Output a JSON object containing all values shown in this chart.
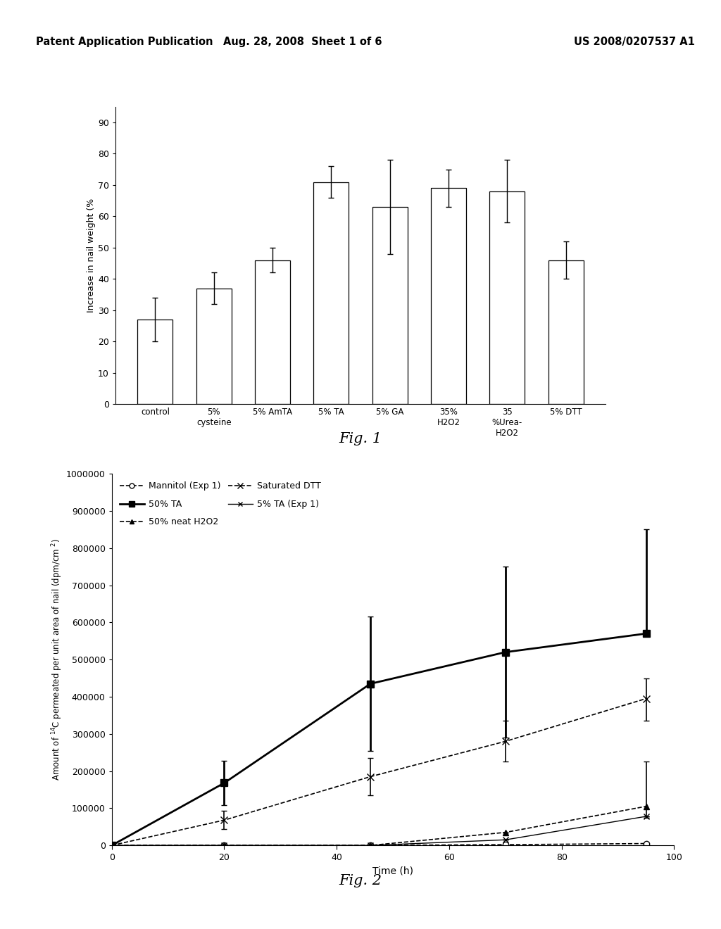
{
  "header_left": "Patent Application Publication",
  "header_mid": "Aug. 28, 2008  Sheet 1 of 6",
  "header_right": "US 2008/0207537 A1",
  "fig1": {
    "categories": [
      "control",
      "5%\ncysteine",
      "5% AmTA",
      "5% TA",
      "5% GA",
      "35%\nH2O2",
      "35\n%Urea-\nH2O2",
      "5% DTT"
    ],
    "values": [
      27,
      37,
      46,
      71,
      63,
      69,
      68,
      46
    ],
    "errors": [
      7,
      5,
      4,
      5,
      15,
      6,
      10,
      6
    ],
    "ylabel": "Increase in nail weight (%",
    "yticks": [
      0,
      10,
      20,
      30,
      40,
      50,
      60,
      70,
      80,
      90
    ],
    "ylim": [
      0,
      95
    ],
    "bar_color": "white",
    "bar_edgecolor": "black",
    "fig_label": "Fig. 1"
  },
  "fig2": {
    "xlabel": "Time (h)",
    "ylabel": "Amount of $^{14}$C permeated per unit area of nail (dpm/cm $^{2}$)",
    "ylim": [
      0,
      1000000
    ],
    "xlim": [
      0,
      100
    ],
    "yticks": [
      0,
      100000,
      200000,
      300000,
      400000,
      500000,
      600000,
      700000,
      800000,
      900000,
      1000000
    ],
    "xticks": [
      0,
      20,
      40,
      60,
      80,
      100
    ],
    "fig_label": "Fig. 2",
    "series": {
      "mannitol": {
        "label": "Mannitol (Exp 1)",
        "x": [
          0,
          20,
          46,
          70,
          95
        ],
        "y": [
          0,
          0,
          0,
          2000,
          5000
        ],
        "yerr_low": [
          0,
          0,
          0,
          0,
          0
        ],
        "yerr_high": [
          0,
          0,
          0,
          0,
          0
        ],
        "color": "black",
        "linestyle": "--",
        "marker": "o",
        "markersize": 6,
        "markerfacecolor": "white",
        "linewidth": 1.2
      },
      "ta50": {
        "label": "50% TA",
        "x": [
          0,
          20,
          46,
          70,
          95
        ],
        "y": [
          0,
          168000,
          435000,
          520000,
          570000
        ],
        "yerr_low": [
          0,
          60000,
          180000,
          230000,
          0
        ],
        "yerr_high": [
          0,
          60000,
          180000,
          230000,
          280000
        ],
        "color": "black",
        "linestyle": "-",
        "marker": "s",
        "markersize": 7,
        "markerfacecolor": "black",
        "linewidth": 2.0
      },
      "h2o2": {
        "label": "50% neat H2O2",
        "x": [
          0,
          20,
          46,
          70,
          95
        ],
        "y": [
          0,
          0,
          0,
          35000,
          105000
        ],
        "yerr_low": [
          0,
          0,
          0,
          0,
          30000
        ],
        "yerr_high": [
          0,
          0,
          0,
          0,
          120000
        ],
        "color": "black",
        "linestyle": "--",
        "marker": "^",
        "markersize": 6,
        "markerfacecolor": "black",
        "linewidth": 1.2
      },
      "satdtt": {
        "label": "Saturated DTT",
        "x": [
          0,
          20,
          46,
          70,
          95
        ],
        "y": [
          0,
          68000,
          185000,
          280000,
          395000
        ],
        "yerr_low": [
          0,
          25000,
          50000,
          55000,
          60000
        ],
        "yerr_high": [
          0,
          25000,
          50000,
          55000,
          55000
        ],
        "color": "black",
        "linestyle": "--",
        "marker": "x",
        "markersize": 7,
        "markerfacecolor": "black",
        "linewidth": 1.2
      },
      "ta5": {
        "label": "5% TA (Exp 1)",
        "x": [
          0,
          20,
          46,
          70,
          95
        ],
        "y": [
          0,
          0,
          0,
          15000,
          78000
        ],
        "yerr_low": [
          0,
          0,
          0,
          0,
          0
        ],
        "yerr_high": [
          0,
          0,
          0,
          0,
          0
        ],
        "color": "black",
        "linestyle": "-",
        "marker": "x",
        "markersize": 6,
        "markerfacecolor": "black",
        "linewidth": 1.0
      }
    }
  },
  "bg_color": "#ffffff",
  "plot_bg": "white"
}
